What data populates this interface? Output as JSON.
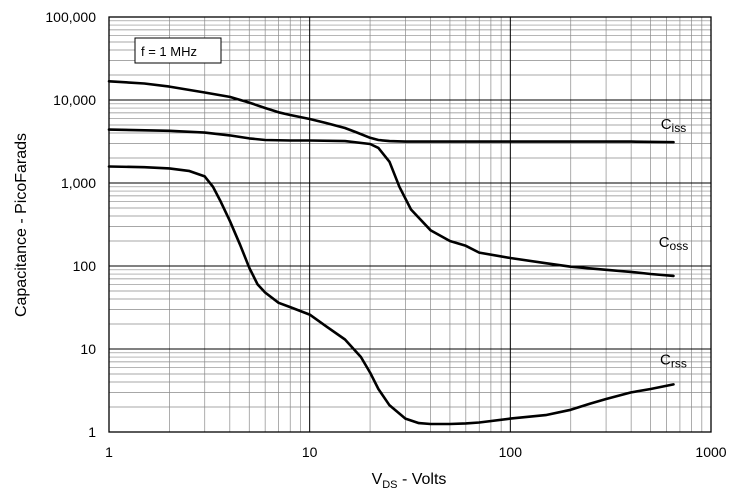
{
  "chart_data": {
    "type": "line",
    "title": "",
    "xlabel": {
      "main": "V",
      "sub": "DS",
      "rest": " - Volts"
    },
    "ylabel": "Capacitance - PicoFarads",
    "x_scale": "log",
    "y_scale": "log",
    "xlim": [
      1,
      1000
    ],
    "ylim": [
      1,
      100000
    ],
    "grid": true,
    "x_ticks": [
      {
        "value": 1,
        "label": "1"
      },
      {
        "value": 10,
        "label": "10"
      },
      {
        "value": 100,
        "label": "100"
      },
      {
        "value": 1000,
        "label": "1000"
      }
    ],
    "y_ticks": [
      {
        "value": 1,
        "label": "1"
      },
      {
        "value": 10,
        "label": "10"
      },
      {
        "value": 100,
        "label": "100"
      },
      {
        "value": 1000,
        "label": "1,000"
      },
      {
        "value": 10000,
        "label": "10,000"
      },
      {
        "value": 100000,
        "label": "100,000"
      }
    ],
    "annotation": "f = 1 MHz",
    "line_color": "#000000",
    "series": [
      {
        "name": {
          "main": "C",
          "sub": "iss"
        },
        "label_at": [
          650,
          4500
        ],
        "x": [
          1,
          1.5,
          2,
          3,
          4,
          5,
          6,
          7,
          8,
          10,
          12,
          15,
          17,
          20,
          22,
          25,
          30,
          40,
          60,
          100,
          200,
          400,
          650
        ],
        "y": [
          16800,
          15800,
          14500,
          12300,
          10900,
          9300,
          8000,
          7100,
          6600,
          5900,
          5300,
          4600,
          4100,
          3500,
          3300,
          3200,
          3150,
          3150,
          3150,
          3150,
          3150,
          3150,
          3100
        ]
      },
      {
        "name": {
          "main": "C",
          "sub": "oss"
        },
        "label_at": [
          650,
          170
        ],
        "x": [
          1,
          2,
          3,
          4,
          5,
          6,
          8,
          10,
          15,
          20,
          22,
          25,
          28,
          32,
          40,
          50,
          60,
          70,
          100,
          150,
          200,
          300,
          400,
          500,
          650
        ],
        "y": [
          4400,
          4250,
          4050,
          3750,
          3450,
          3300,
          3250,
          3250,
          3200,
          2950,
          2650,
          1800,
          900,
          480,
          270,
          200,
          175,
          145,
          125,
          108,
          98,
          90,
          85,
          80,
          76
        ]
      },
      {
        "name": {
          "main": "C",
          "sub": "rss"
        },
        "label_at": [
          650,
          6.5
        ],
        "x": [
          1,
          1.5,
          2,
          2.5,
          3,
          3.3,
          3.6,
          4,
          4.5,
          5,
          5.5,
          6,
          7,
          8,
          10,
          12,
          15,
          18,
          20,
          22,
          25,
          30,
          35,
          40,
          50,
          60,
          70,
          100,
          150,
          200,
          250,
          300,
          400,
          500,
          650
        ],
        "y": [
          1580,
          1550,
          1500,
          1400,
          1200,
          900,
          600,
          350,
          180,
          95,
          60,
          48,
          36,
          32,
          26,
          19,
          13,
          8,
          5.2,
          3.3,
          2.1,
          1.45,
          1.28,
          1.25,
          1.25,
          1.27,
          1.3,
          1.45,
          1.6,
          1.85,
          2.2,
          2.5,
          3.0,
          3.3,
          3.75
        ]
      }
    ]
  }
}
